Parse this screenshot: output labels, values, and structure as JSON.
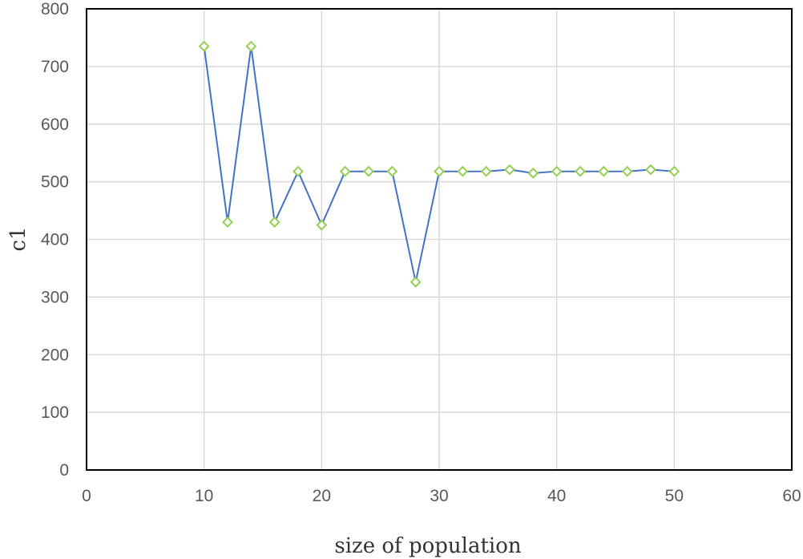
{
  "chart_data": {
    "type": "scatter",
    "title": "",
    "xlabel": "size of population",
    "ylabel": "c1",
    "xlim": [
      0,
      60
    ],
    "ylim": [
      0,
      800
    ],
    "xticks": [
      0,
      10,
      20,
      30,
      40,
      50,
      60
    ],
    "yticks": [
      0,
      100,
      200,
      300,
      400,
      500,
      600,
      700,
      800
    ],
    "grid": true,
    "legend": "none",
    "line_color": "#4472c4",
    "marker_color": "#92d050",
    "marker_shape": "diamond",
    "series": [
      {
        "x": [
          10,
          12,
          14,
          16,
          18,
          20,
          22,
          24,
          26,
          28,
          30,
          32,
          34,
          36,
          38,
          40,
          42,
          44,
          46,
          48,
          50
        ],
        "y": [
          735,
          430,
          735,
          430,
          518,
          425,
          518,
          518,
          518,
          326,
          518,
          518,
          518,
          521,
          515,
          518,
          518,
          518,
          518,
          521,
          518
        ]
      }
    ]
  }
}
